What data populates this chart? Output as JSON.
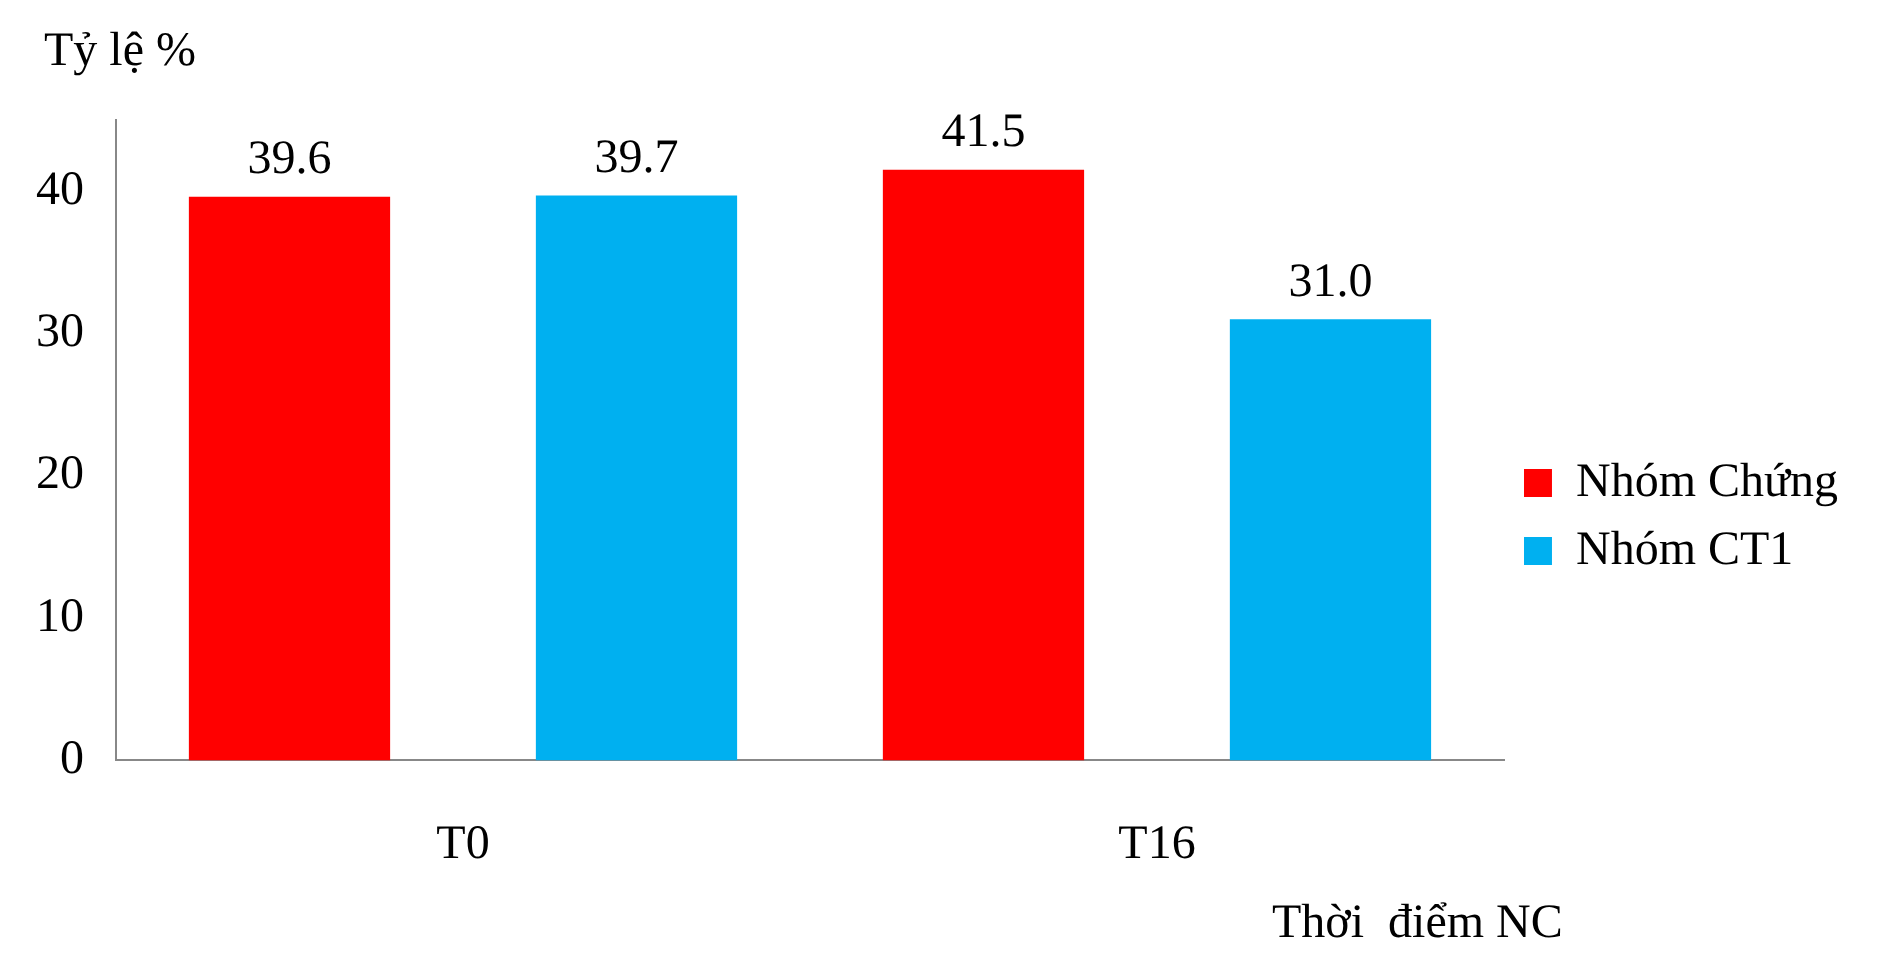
{
  "chart_data": {
    "type": "bar",
    "ylabel": "Tỷ lệ %",
    "xlabel": "Thời  điểm NC",
    "categories": [
      "T0",
      "T16"
    ],
    "series": [
      {
        "name": "Nhóm Chứng",
        "color": "#ff0000",
        "values": [
          39.6,
          41.5
        ],
        "value_labels": [
          "39.6",
          "41.5"
        ]
      },
      {
        "name": "Nhóm CT1",
        "color": "#00b0f0",
        "values": [
          39.7,
          31.0
        ],
        "value_labels": [
          "39.7",
          "31.0"
        ]
      }
    ],
    "ylim": [
      0,
      45
    ],
    "yticks": [
      0,
      10,
      20,
      30,
      40
    ],
    "grid": false,
    "legend": "right"
  }
}
